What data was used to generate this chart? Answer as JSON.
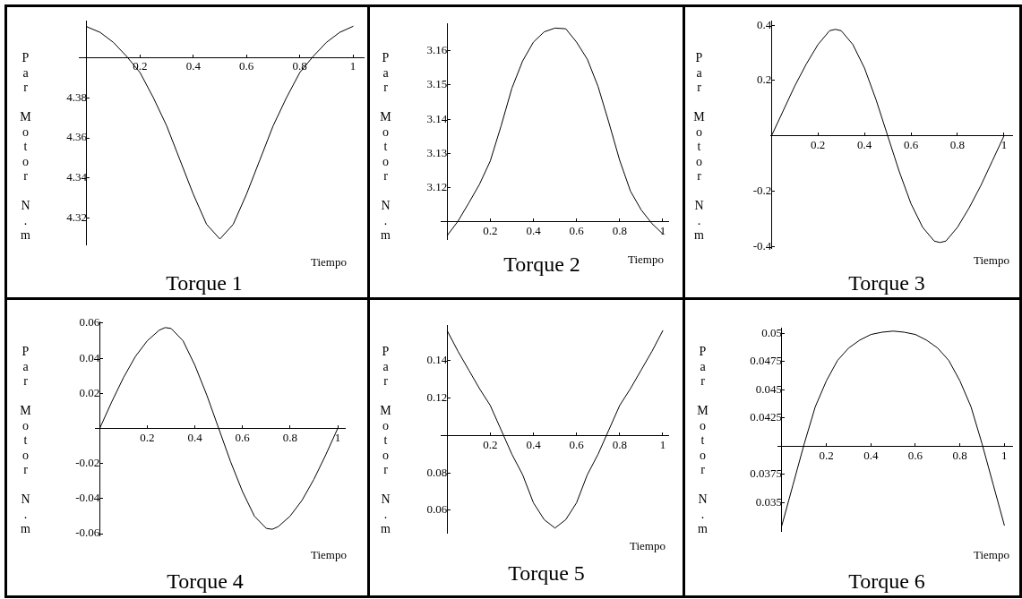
{
  "chart_data": [
    {
      "type": "line",
      "title": "Torque 1",
      "xlabel": "Tiempo",
      "ylabel": "Par Motor N.m",
      "color": "#000000",
      "x": [
        0,
        0.05,
        0.1,
        0.15,
        0.2,
        0.25,
        0.3,
        0.35,
        0.4,
        0.45,
        0.5,
        0.55,
        0.6,
        0.65,
        0.7,
        0.75,
        0.8,
        0.85,
        0.9,
        0.95,
        1
      ],
      "values": [
        4.4153,
        4.4125,
        4.4075,
        4.4005,
        4.3925,
        4.38,
        4.366,
        4.349,
        4.332,
        4.317,
        4.3097,
        4.317,
        4.332,
        4.349,
        4.366,
        4.38,
        4.3925,
        4.4005,
        4.4075,
        4.4125,
        4.4155
      ],
      "xlim": [
        -0.03,
        1.04
      ],
      "ylim": [
        4.307,
        4.418
      ],
      "xticks": [
        0.2,
        0.4,
        0.6,
        0.8,
        1
      ],
      "yticks": [
        4.32,
        4.34,
        4.36,
        4.38,
        {
          "value": 4.4,
          "label": null
        }
      ]
    },
    {
      "type": "line",
      "title": "Torque 2",
      "xlabel": "Tiempo",
      "ylabel": "Par Motor N.m",
      "color": "#000000",
      "x": [
        0,
        0.05,
        0.1,
        0.15,
        0.2,
        0.25,
        0.3,
        0.35,
        0.4,
        0.45,
        0.5,
        0.55,
        0.6,
        0.65,
        0.7,
        0.75,
        0.8,
        0.85,
        0.9,
        0.95,
        1
      ],
      "values": [
        3.106,
        3.1102,
        3.1155,
        3.121,
        3.1278,
        3.138,
        3.149,
        3.157,
        3.1625,
        3.1655,
        3.1666,
        3.1664,
        3.1625,
        3.1575,
        3.1495,
        3.139,
        3.128,
        3.119,
        3.1135,
        3.1095,
        3.1065
      ],
      "xlim": [
        -0.03,
        1.025
      ],
      "ylim": [
        3.105,
        3.168
      ],
      "xticks": [
        0.2,
        0.4,
        0.6,
        0.8,
        1
      ],
      "yticks": [
        {
          "value": 3.11,
          "label": null
        },
        3.12,
        3.13,
        3.14,
        3.15,
        3.16
      ]
    },
    {
      "type": "line",
      "title": "Torque 3",
      "xlabel": "Tiempo",
      "ylabel": "Par Motor N.m",
      "color": "#000000",
      "x": [
        0,
        0.05,
        0.1,
        0.15,
        0.2,
        0.25,
        0.275,
        0.3,
        0.35,
        0.4,
        0.45,
        0.5,
        0.55,
        0.6,
        0.65,
        0.7,
        0.725,
        0.75,
        0.8,
        0.85,
        0.9,
        0.95,
        1
      ],
      "values": [
        0,
        0.09,
        0.18,
        0.26,
        0.33,
        0.38,
        0.385,
        0.38,
        0.33,
        0.245,
        0.13,
        0,
        -0.13,
        -0.245,
        -0.33,
        -0.38,
        -0.385,
        -0.38,
        -0.33,
        -0.26,
        -0.18,
        -0.09,
        0
      ],
      "xlim": [
        -0.005,
        1.035
      ],
      "ylim": [
        -0.405,
        0.414
      ],
      "xticks": [
        0.2,
        0.4,
        0.6,
        0.8,
        1
      ],
      "yticks": [
        -0.4,
        -0.2,
        {
          "value": 0,
          "label": null
        },
        0.2,
        0.4
      ]
    },
    {
      "type": "line",
      "title": "Torque 4",
      "xlabel": "Tiempo",
      "ylabel": "Par Motor N.m",
      "color": "#000000",
      "x": [
        0,
        0.05,
        0.1,
        0.15,
        0.2,
        0.25,
        0.275,
        0.3,
        0.35,
        0.4,
        0.45,
        0.5,
        0.55,
        0.6,
        0.65,
        0.7,
        0.725,
        0.75,
        0.8,
        0.85,
        0.9,
        0.95,
        1
      ],
      "values": [
        0,
        0.015,
        0.029,
        0.041,
        0.05,
        0.056,
        0.0575,
        0.057,
        0.05,
        0.036,
        0.019,
        0,
        -0.019,
        -0.036,
        -0.05,
        -0.057,
        -0.0575,
        -0.056,
        -0.05,
        -0.041,
        -0.029,
        -0.015,
        0
      ],
      "xlim": [
        -0.02,
        1.03
      ],
      "ylim": [
        -0.061,
        0.061
      ],
      "xticks": [
        0.2,
        0.4,
        0.6,
        0.8,
        1
      ],
      "yticks": [
        -0.06,
        -0.04,
        -0.02,
        {
          "value": 0,
          "label": null
        },
        0.02,
        0.04,
        0.06
      ]
    },
    {
      "type": "line",
      "title": "Torque 5",
      "xlabel": "Tiempo",
      "ylabel": "Par Motor N.m",
      "color": "#000000",
      "x": [
        0,
        0.05,
        0.1,
        0.15,
        0.2,
        0.25,
        0.3,
        0.35,
        0.4,
        0.45,
        0.5,
        0.55,
        0.6,
        0.65,
        0.7,
        0.75,
        0.8,
        0.85,
        0.9,
        0.95,
        1
      ],
      "values": [
        0.156,
        0.145,
        0.135,
        0.125,
        0.116,
        0.103,
        0.09,
        0.079,
        0.064,
        0.055,
        0.0505,
        0.055,
        0.064,
        0.079,
        0.09,
        0.103,
        0.116,
        0.125,
        0.135,
        0.145,
        0.156
      ],
      "xlim": [
        -0.03,
        1.025
      ],
      "ylim": [
        0.048,
        0.159
      ],
      "xticks": [
        0.2,
        0.4,
        0.6,
        0.8,
        1
      ],
      "yticks": [
        0.06,
        0.08,
        {
          "value": 0.1,
          "label": null
        },
        0.12,
        0.14
      ]
    },
    {
      "type": "line",
      "title": "Torque 6",
      "xlabel": "Tiempo",
      "ylabel": "Par Motor N.m",
      "color": "#000000",
      "x": [
        0,
        0.05,
        0.1,
        0.15,
        0.2,
        0.25,
        0.3,
        0.35,
        0.4,
        0.45,
        0.5,
        0.55,
        0.6,
        0.65,
        0.7,
        0.75,
        0.8,
        0.85,
        0.9,
        0.95,
        1
      ],
      "values": [
        0.033,
        0.0366,
        0.0402,
        0.0435,
        0.0458,
        0.0476,
        0.0487,
        0.0494,
        0.0499,
        0.0501,
        0.0502,
        0.0501,
        0.0499,
        0.0494,
        0.0487,
        0.0476,
        0.0458,
        0.0435,
        0.0402,
        0.0366,
        0.033
      ],
      "xlim": [
        -0.02,
        1.035
      ],
      "ylim": [
        0.0325,
        0.0505
      ],
      "xticks": [
        0.2,
        0.4,
        0.6,
        0.8,
        1
      ],
      "yticks": [
        0.035,
        0.0375,
        {
          "value": 0.04,
          "label": null
        },
        0.0425,
        0.045,
        0.0475,
        0.05
      ]
    }
  ]
}
